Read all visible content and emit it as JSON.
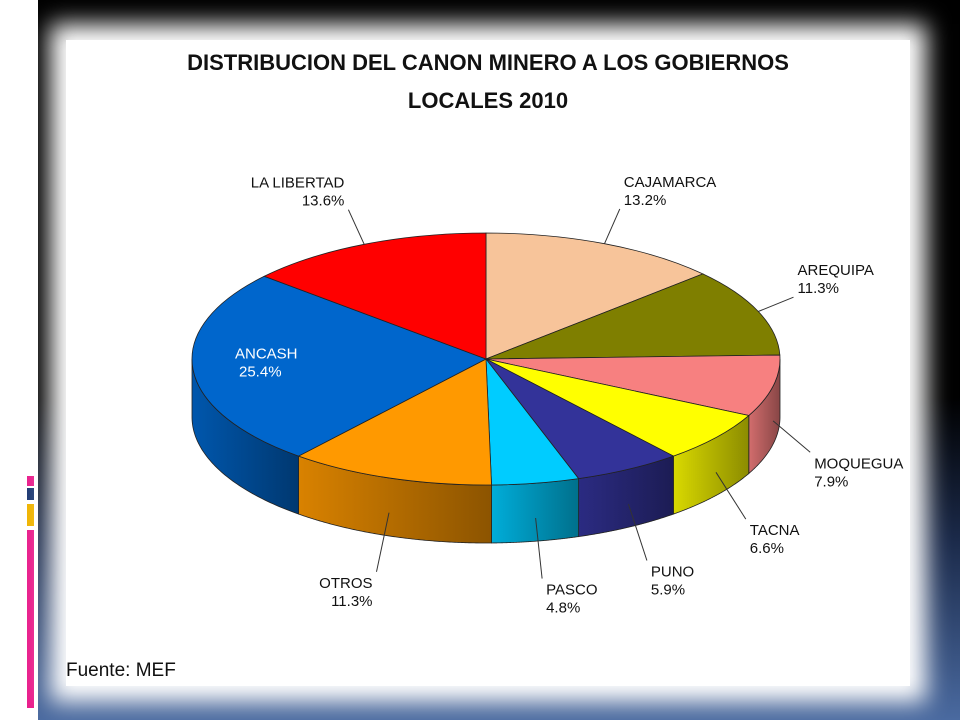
{
  "slide": {
    "accent_colors": [
      "#e91e8c",
      "#1f3a73",
      "#f0b400",
      "#e91e8c"
    ]
  },
  "chart_data": {
    "type": "pie",
    "title": "DISTRIBUCION DEL CANON MINERO A LOS GOBIERNOS LOCALES 2010",
    "title_lines": [
      "DISTRIBUCION DEL CANON MINERO A LOS GOBIERNOS",
      "LOCALES 2010"
    ],
    "style": "3d",
    "slices": [
      {
        "label": "CAJAMARCA",
        "value": 13.2,
        "value_label": "13.2%",
        "color": "#f7c49a"
      },
      {
        "label": "AREQUIPA",
        "value": 11.3,
        "value_label": "11.3%",
        "color": "#7f7f00"
      },
      {
        "label": "MOQUEGUA",
        "value": 7.9,
        "value_label": "7.9%",
        "color": "#f78080"
      },
      {
        "label": "TACNA",
        "value": 6.6,
        "value_label": "6.6%",
        "color": "#ffff00"
      },
      {
        "label": "PUNO",
        "value": 5.9,
        "value_label": "5.9%",
        "color": "#333399"
      },
      {
        "label": "PASCO",
        "value": 4.8,
        "value_label": "4.8%",
        "color": "#00ccff"
      },
      {
        "label": "OTROS",
        "value": 11.3,
        "value_label": "11.3%",
        "color": "#ff9900"
      },
      {
        "label": "ANCASH",
        "value": 25.4,
        "value_label": "25.4%",
        "color": "#0066cc"
      },
      {
        "label": "LA LIBERTAD",
        "value": 13.6,
        "value_label": "13.6%",
        "color": "#ff0000"
      }
    ],
    "source": "Fuente: MEF"
  }
}
